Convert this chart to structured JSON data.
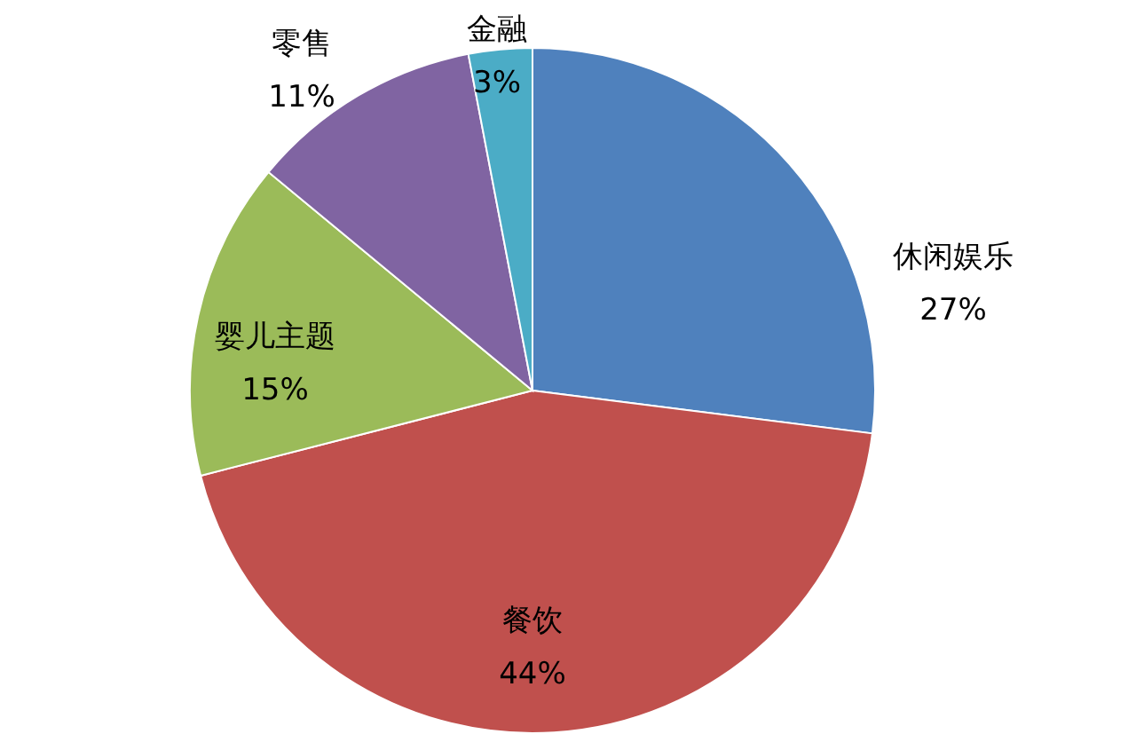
{
  "chart_data": {
    "type": "pie",
    "categories": [
      "休闲娱乐",
      "餐饮",
      "婴儿主题",
      "零售",
      "金融"
    ],
    "values": [
      27,
      44,
      15,
      11,
      3
    ],
    "colors": [
      "#4f81bd",
      "#c0504d",
      "#9bbb59",
      "#8064a2",
      "#4bacc6"
    ],
    "value_labels": [
      "27%",
      "44%",
      "15%",
      "11%",
      "3%"
    ]
  }
}
